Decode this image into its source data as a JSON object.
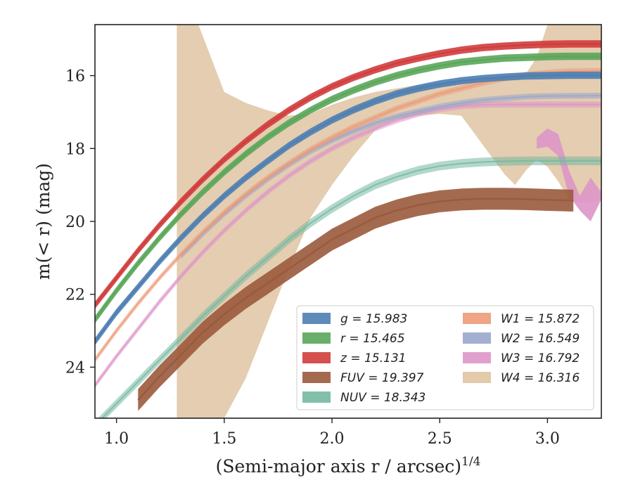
{
  "chart_data": {
    "type": "line",
    "title": "",
    "xlabel": "(Semi-major axis r / arcsec)",
    "xlabel_exponent": "1/4",
    "ylabel": "m(< r) (mag)",
    "xlim": [
      0.9,
      3.25
    ],
    "ylim": [
      25.4,
      14.6
    ],
    "y_inverted": true,
    "xticks": [
      "1.0",
      "1.5",
      "2.0",
      "2.5",
      "3.0"
    ],
    "xtick_values": [
      1.0,
      1.5,
      2.0,
      2.5,
      3.0
    ],
    "yticks": [
      "16",
      "18",
      "20",
      "22",
      "24"
    ],
    "ytick_values": [
      16,
      18,
      20,
      22,
      24
    ],
    "grid": false,
    "legend_position": "lower-right",
    "series": [
      {
        "name": "g = 15.983",
        "band": "g",
        "total_mag": "15.983",
        "color": "#4c7eb2",
        "points": [
          [
            0.9,
            23.3
          ],
          [
            1.0,
            22.5
          ],
          [
            1.1,
            21.8
          ],
          [
            1.2,
            21.1
          ],
          [
            1.3,
            20.45
          ],
          [
            1.4,
            19.85
          ],
          [
            1.5,
            19.3
          ],
          [
            1.6,
            18.8
          ],
          [
            1.7,
            18.35
          ],
          [
            1.8,
            17.92
          ],
          [
            1.9,
            17.55
          ],
          [
            2.0,
            17.22
          ],
          [
            2.1,
            16.94
          ],
          [
            2.2,
            16.7
          ],
          [
            2.3,
            16.5
          ],
          [
            2.4,
            16.35
          ],
          [
            2.5,
            16.23
          ],
          [
            2.6,
            16.14
          ],
          [
            2.7,
            16.08
          ],
          [
            2.8,
            16.04
          ],
          [
            2.9,
            16.01
          ],
          [
            3.0,
            16.0
          ],
          [
            3.1,
            15.99
          ],
          [
            3.25,
            15.99
          ]
        ],
        "band_width": 0.1
      },
      {
        "name": "r = 15.465",
        "band": "r",
        "total_mag": "15.465",
        "color": "#5aa65a",
        "points": [
          [
            0.9,
            22.7
          ],
          [
            1.0,
            21.9
          ],
          [
            1.1,
            21.15
          ],
          [
            1.2,
            20.45
          ],
          [
            1.3,
            19.8
          ],
          [
            1.4,
            19.2
          ],
          [
            1.5,
            18.65
          ],
          [
            1.6,
            18.15
          ],
          [
            1.7,
            17.7
          ],
          [
            1.8,
            17.3
          ],
          [
            1.9,
            16.95
          ],
          [
            2.0,
            16.65
          ],
          [
            2.1,
            16.4
          ],
          [
            2.2,
            16.18
          ],
          [
            2.3,
            16.0
          ],
          [
            2.4,
            15.85
          ],
          [
            2.5,
            15.73
          ],
          [
            2.6,
            15.63
          ],
          [
            2.7,
            15.57
          ],
          [
            2.8,
            15.52
          ],
          [
            2.9,
            15.5
          ],
          [
            3.0,
            15.48
          ],
          [
            3.1,
            15.47
          ],
          [
            3.25,
            15.47
          ]
        ],
        "band_width": 0.1
      },
      {
        "name": "z = 15.131",
        "band": "z",
        "total_mag": "15.131",
        "color": "#d03c3c",
        "points": [
          [
            0.9,
            22.3
          ],
          [
            1.0,
            21.55
          ],
          [
            1.1,
            20.8
          ],
          [
            1.2,
            20.1
          ],
          [
            1.3,
            19.45
          ],
          [
            1.4,
            18.85
          ],
          [
            1.5,
            18.3
          ],
          [
            1.6,
            17.8
          ],
          [
            1.7,
            17.35
          ],
          [
            1.8,
            16.95
          ],
          [
            1.9,
            16.6
          ],
          [
            2.0,
            16.3
          ],
          [
            2.1,
            16.05
          ],
          [
            2.2,
            15.84
          ],
          [
            2.3,
            15.66
          ],
          [
            2.4,
            15.52
          ],
          [
            2.5,
            15.4
          ],
          [
            2.6,
            15.3
          ],
          [
            2.7,
            15.23
          ],
          [
            2.8,
            15.19
          ],
          [
            2.9,
            15.16
          ],
          [
            3.0,
            15.14
          ],
          [
            3.1,
            15.13
          ],
          [
            3.25,
            15.13
          ]
        ],
        "band_width": 0.1
      },
      {
        "name": "FUV = 19.397",
        "band": "FUV",
        "total_mag": "19.397",
        "color": "#9a5a3c",
        "points": [
          [
            1.1,
            24.9
          ],
          [
            1.2,
            24.25
          ],
          [
            1.3,
            23.65
          ],
          [
            1.4,
            23.05
          ],
          [
            1.5,
            22.55
          ],
          [
            1.6,
            22.1
          ],
          [
            1.7,
            21.7
          ],
          [
            1.8,
            21.3
          ],
          [
            1.9,
            20.9
          ],
          [
            2.0,
            20.5
          ],
          [
            2.1,
            20.2
          ],
          [
            2.2,
            19.9
          ],
          [
            2.3,
            19.7
          ],
          [
            2.4,
            19.55
          ],
          [
            2.5,
            19.45
          ],
          [
            2.6,
            19.4
          ],
          [
            2.7,
            19.38
          ],
          [
            2.8,
            19.38
          ],
          [
            2.9,
            19.39
          ],
          [
            3.0,
            19.41
          ],
          [
            3.12,
            19.43
          ]
        ],
        "band_width": 0.3
      },
      {
        "name": "NUV = 18.343",
        "band": "NUV",
        "total_mag": "18.343",
        "color": "#74b8a0",
        "points": [
          [
            0.9,
            25.6
          ],
          [
            1.0,
            25.0
          ],
          [
            1.1,
            24.4
          ],
          [
            1.2,
            23.8
          ],
          [
            1.3,
            23.2
          ],
          [
            1.4,
            22.6
          ],
          [
            1.5,
            22.05
          ],
          [
            1.6,
            21.5
          ],
          [
            1.7,
            21.0
          ],
          [
            1.8,
            20.5
          ],
          [
            1.9,
            20.05
          ],
          [
            2.0,
            19.65
          ],
          [
            2.1,
            19.3
          ],
          [
            2.2,
            19.0
          ],
          [
            2.3,
            18.78
          ],
          [
            2.4,
            18.6
          ],
          [
            2.5,
            18.48
          ],
          [
            2.6,
            18.41
          ],
          [
            2.7,
            18.37
          ],
          [
            2.8,
            18.35
          ],
          [
            2.9,
            18.34
          ],
          [
            3.0,
            18.34
          ],
          [
            3.25,
            18.34
          ]
        ],
        "band_width": 0.12
      },
      {
        "name": "W1 = 15.872",
        "band": "W1",
        "total_mag": "15.872",
        "color": "#ec9a78",
        "points": [
          [
            0.9,
            23.8
          ],
          [
            1.0,
            23.0
          ],
          [
            1.1,
            22.25
          ],
          [
            1.2,
            21.55
          ],
          [
            1.3,
            20.9
          ],
          [
            1.4,
            20.3
          ],
          [
            1.5,
            19.75
          ],
          [
            1.6,
            19.25
          ],
          [
            1.7,
            18.8
          ],
          [
            1.8,
            18.4
          ],
          [
            1.9,
            18.02
          ],
          [
            2.0,
            17.7
          ],
          [
            2.1,
            17.4
          ],
          [
            2.2,
            17.15
          ],
          [
            2.3,
            16.9
          ],
          [
            2.4,
            16.7
          ],
          [
            2.5,
            16.5
          ],
          [
            2.6,
            16.35
          ],
          [
            2.7,
            16.2
          ],
          [
            2.8,
            16.08
          ],
          [
            2.9,
            15.98
          ],
          [
            3.0,
            15.92
          ],
          [
            3.1,
            15.88
          ],
          [
            3.25,
            15.87
          ]
        ],
        "band_width": 0.08
      },
      {
        "name": "W2 = 16.549",
        "band": "W2",
        "total_mag": "16.549",
        "color": "#98a6cc",
        "points": [
          [
            1.3,
            20.95
          ],
          [
            1.4,
            20.35
          ],
          [
            1.5,
            19.8
          ],
          [
            1.6,
            19.3
          ],
          [
            1.7,
            18.85
          ],
          [
            1.8,
            18.45
          ],
          [
            1.9,
            18.08
          ],
          [
            2.0,
            17.78
          ],
          [
            2.1,
            17.52
          ],
          [
            2.2,
            17.3
          ],
          [
            2.3,
            17.12
          ],
          [
            2.4,
            16.98
          ],
          [
            2.5,
            16.85
          ],
          [
            2.6,
            16.75
          ],
          [
            2.7,
            16.67
          ],
          [
            2.8,
            16.62
          ],
          [
            2.9,
            16.58
          ],
          [
            3.0,
            16.56
          ],
          [
            3.25,
            16.55
          ]
        ],
        "band_width": 0.08
      },
      {
        "name": "W3 = 16.792",
        "band": "W3",
        "total_mag": "16.792",
        "color": "#dd96c8",
        "points": [
          [
            0.9,
            24.5
          ],
          [
            1.0,
            23.7
          ],
          [
            1.1,
            22.95
          ],
          [
            1.2,
            22.2
          ],
          [
            1.3,
            21.5
          ],
          [
            1.4,
            20.85
          ],
          [
            1.5,
            20.25
          ],
          [
            1.6,
            19.7
          ],
          [
            1.7,
            19.2
          ],
          [
            1.8,
            18.75
          ],
          [
            1.9,
            18.35
          ],
          [
            2.0,
            18.0
          ],
          [
            2.1,
            17.7
          ],
          [
            2.2,
            17.45
          ],
          [
            2.3,
            17.23
          ],
          [
            2.4,
            17.05
          ],
          [
            2.5,
            16.92
          ],
          [
            2.6,
            16.84
          ],
          [
            2.7,
            16.8
          ],
          [
            2.8,
            16.79
          ],
          [
            3.0,
            16.79
          ],
          [
            3.25,
            16.79
          ]
        ],
        "band_width": 0.08,
        "extra_band_upper": [
          [
            2.95,
            17.7
          ],
          [
            3.0,
            17.45
          ],
          [
            3.05,
            17.6
          ],
          [
            3.1,
            18.6
          ],
          [
            3.15,
            19.3
          ],
          [
            3.2,
            18.8
          ],
          [
            3.25,
            19.2
          ]
        ],
        "extra_band_lower": [
          [
            2.95,
            18.0
          ],
          [
            3.0,
            17.95
          ],
          [
            3.05,
            18.2
          ],
          [
            3.1,
            19.3
          ],
          [
            3.15,
            19.7
          ],
          [
            3.2,
            20.0
          ],
          [
            3.25,
            19.4
          ]
        ]
      },
      {
        "name": "W4 = 16.316",
        "band": "W4",
        "total_mag": "16.316",
        "color": "#dfc4a2",
        "upper": [
          [
            1.28,
            14.6
          ],
          [
            1.38,
            14.6
          ],
          [
            1.5,
            16.45
          ],
          [
            1.6,
            16.75
          ],
          [
            1.7,
            16.95
          ],
          [
            1.8,
            17.1
          ],
          [
            1.9,
            17.05
          ],
          [
            2.0,
            16.8
          ],
          [
            2.1,
            16.6
          ],
          [
            2.2,
            16.45
          ],
          [
            2.3,
            16.35
          ],
          [
            2.4,
            16.25
          ],
          [
            2.5,
            16.2
          ],
          [
            2.6,
            16.15
          ],
          [
            2.7,
            16.1
          ],
          [
            2.8,
            16.0
          ],
          [
            2.9,
            15.95
          ],
          [
            2.95,
            15.5
          ],
          [
            3.0,
            14.6
          ],
          [
            3.25,
            14.6
          ]
        ],
        "lower": [
          [
            1.28,
            25.4
          ],
          [
            1.5,
            25.4
          ],
          [
            1.6,
            24.3
          ],
          [
            1.7,
            22.8
          ],
          [
            1.8,
            21.3
          ],
          [
            1.9,
            19.9
          ],
          [
            2.0,
            19.0
          ],
          [
            2.1,
            18.2
          ],
          [
            2.2,
            17.5
          ],
          [
            2.3,
            17.2
          ],
          [
            2.4,
            17.1
          ],
          [
            2.5,
            17.05
          ],
          [
            2.6,
            17.1
          ],
          [
            2.65,
            17.5
          ],
          [
            2.7,
            17.9
          ],
          [
            2.75,
            18.3
          ],
          [
            2.8,
            18.7
          ],
          [
            2.85,
            19.0
          ],
          [
            2.9,
            18.6
          ],
          [
            2.95,
            18.3
          ],
          [
            3.0,
            18.5
          ],
          [
            3.05,
            18.9
          ],
          [
            3.1,
            19.4
          ],
          [
            3.15,
            19.5
          ],
          [
            3.25,
            19.4
          ]
        ]
      }
    ]
  }
}
